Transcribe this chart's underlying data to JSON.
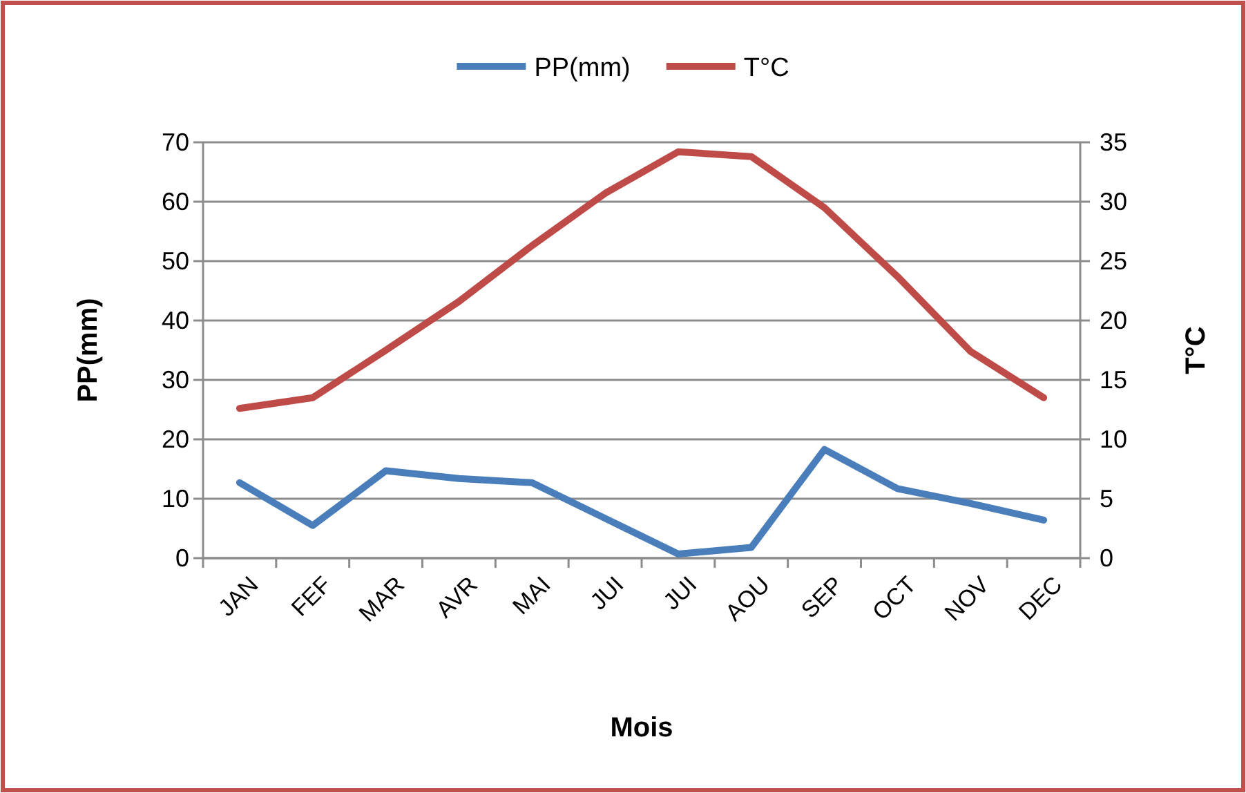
{
  "chart_data": {
    "type": "line",
    "xlabel": "Mois",
    "ylabel": "PP(mm)",
    "y2label": "T°C",
    "categories": [
      "JAN",
      "FEF",
      "MAR",
      "AVR",
      "MAI",
      "JUI",
      "JUI",
      "AOU",
      "SEP",
      "OCT",
      "NOV",
      "DEC"
    ],
    "series": [
      {
        "name": "PP(mm)",
        "color": "#4a7ebb",
        "values": [
          12.7,
          5.5,
          14.7,
          13.4,
          12.7,
          6.7,
          0.7,
          1.8,
          18.3,
          11.7,
          9.2,
          6.4
        ]
      },
      {
        "name": "T°C",
        "color": "#be4b48",
        "axis": "y2",
        "values": [
          12.6,
          13.5,
          17.5,
          21.6,
          26.3,
          30.7,
          34.2,
          33.8,
          29.5,
          23.7,
          17.4,
          13.5
        ]
      }
    ],
    "ylim": [
      0,
      70
    ],
    "yticks": [
      0,
      10,
      20,
      30,
      40,
      50,
      60,
      70
    ],
    "y2lim": [
      0,
      35
    ],
    "y2ticks": [
      0,
      5,
      10,
      15,
      20,
      25,
      30,
      35
    ],
    "grid": "y",
    "legend": "top",
    "marker": "none",
    "line_style": "solid"
  }
}
